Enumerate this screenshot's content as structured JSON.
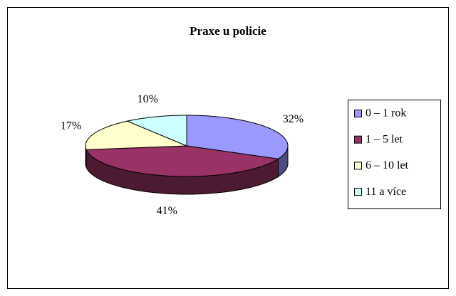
{
  "chart_data": {
    "type": "pie3d",
    "title": "Praxe u policie",
    "categories": [
      "0 – 1 rok",
      "1 – 5 let",
      "6 – 10 let",
      "11 a více"
    ],
    "values": [
      32,
      41,
      17,
      10
    ],
    "value_labels": [
      "32%",
      "41%",
      "17%",
      "10%"
    ],
    "colors": [
      "#9999ff",
      "#993366",
      "#ffffcc",
      "#ccffff"
    ],
    "legend": "right"
  }
}
